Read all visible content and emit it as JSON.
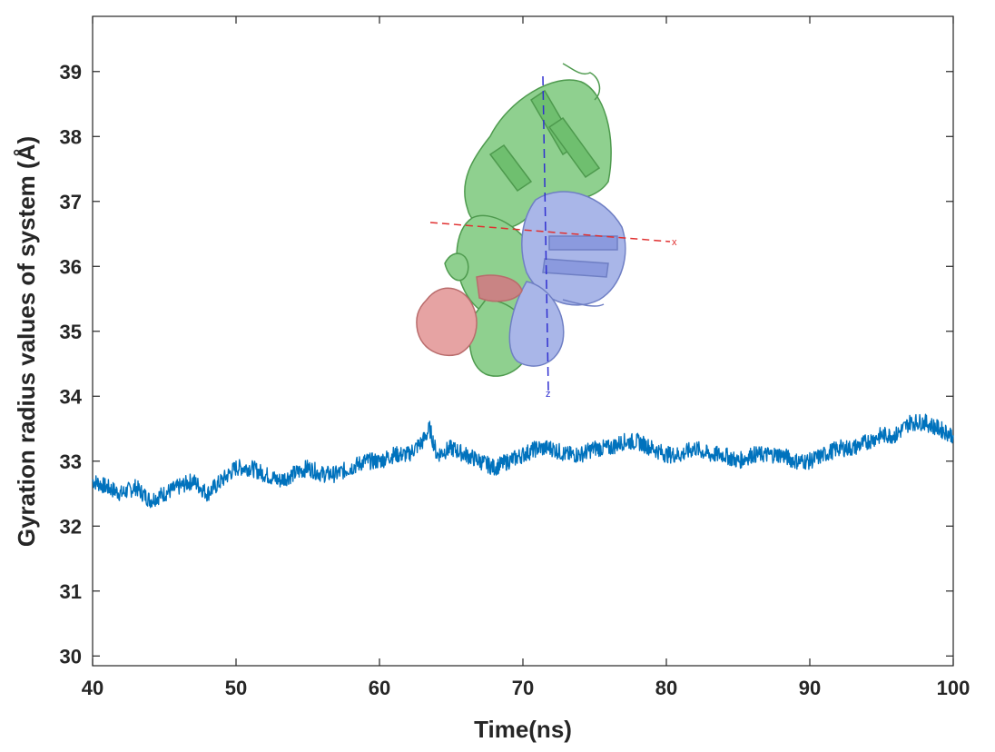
{
  "chart_data": {
    "type": "line",
    "xlabel": "Time(ns)",
    "ylabel": "Gyration radius values of system (Å)",
    "xlim": [
      40,
      100
    ],
    "ylim": [
      29.85,
      39.85
    ],
    "xticks": [
      40,
      50,
      60,
      70,
      80,
      90,
      100
    ],
    "yticks": [
      30,
      31,
      32,
      33,
      34,
      35,
      36,
      37,
      38,
      39
    ],
    "grid": false,
    "legend": "none",
    "series": [
      {
        "color": "#0072BD",
        "x": [
          40,
          41,
          42,
          43,
          44,
          45,
          46,
          47,
          48,
          49,
          50,
          51,
          52,
          53,
          54,
          55,
          56,
          57,
          58,
          59,
          60,
          61,
          62,
          63,
          63.5,
          64,
          65,
          66,
          67,
          68,
          69,
          70,
          71,
          72,
          73,
          74,
          75,
          76,
          77,
          78,
          79,
          80,
          81,
          82,
          83,
          84,
          85,
          86,
          87,
          88,
          89,
          90,
          91,
          92,
          93,
          94,
          95,
          96,
          97,
          98,
          99,
          100
        ],
        "y": [
          32.7,
          32.6,
          32.5,
          32.6,
          32.4,
          32.5,
          32.6,
          32.7,
          32.5,
          32.7,
          32.9,
          32.9,
          32.8,
          32.7,
          32.8,
          32.9,
          32.8,
          32.8,
          32.9,
          33.0,
          33.0,
          33.1,
          33.1,
          33.3,
          33.5,
          33.1,
          33.2,
          33.1,
          33.0,
          32.9,
          33.0,
          33.1,
          33.2,
          33.2,
          33.1,
          33.1,
          33.2,
          33.2,
          33.3,
          33.3,
          33.2,
          33.1,
          33.1,
          33.2,
          33.1,
          33.1,
          33.0,
          33.1,
          33.1,
          33.1,
          33.0,
          33.0,
          33.1,
          33.2,
          33.2,
          33.3,
          33.4,
          33.4,
          33.6,
          33.6,
          33.5,
          33.4
        ]
      }
    ],
    "inset": {
      "axis_labels": [
        "x",
        "z"
      ]
    }
  }
}
